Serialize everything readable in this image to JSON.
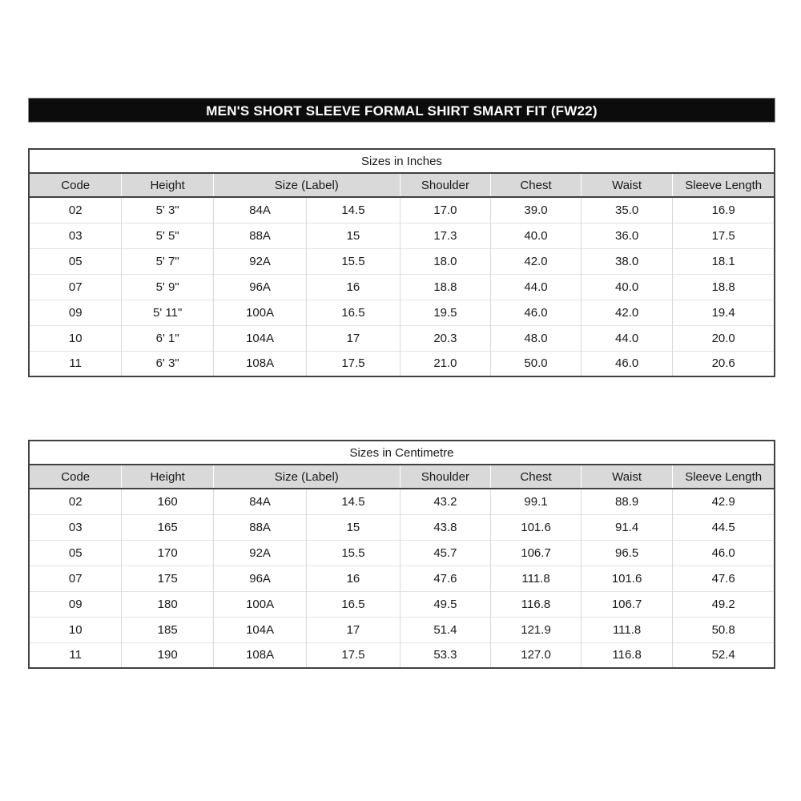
{
  "banner": {
    "title": "MEN'S SHORT SLEEVE FORMAL SHIRT SMART FIT (FW22)",
    "bg_color": "#0c0c0c",
    "text_color": "#ffffff"
  },
  "columns": {
    "code": "Code",
    "height": "Height",
    "size_label": "Size (Label)",
    "shoulder": "Shoulder",
    "chest": "Chest",
    "waist": "Waist",
    "sleeve_length": "Sleeve Length"
  },
  "header_bg_color": "#d9d9d9",
  "tables": {
    "inches": {
      "title": "Sizes in Inches",
      "rows": [
        [
          "02",
          "5' 3\"",
          "84A",
          "14.5",
          "17.0",
          "39.0",
          "35.0",
          "16.9"
        ],
        [
          "03",
          "5' 5\"",
          "88A",
          "15",
          "17.3",
          "40.0",
          "36.0",
          "17.5"
        ],
        [
          "05",
          "5' 7\"",
          "92A",
          "15.5",
          "18.0",
          "42.0",
          "38.0",
          "18.1"
        ],
        [
          "07",
          "5' 9\"",
          "96A",
          "16",
          "18.8",
          "44.0",
          "40.0",
          "18.8"
        ],
        [
          "09",
          "5' 11\"",
          "100A",
          "16.5",
          "19.5",
          "46.0",
          "42.0",
          "19.4"
        ],
        [
          "10",
          "6' 1\"",
          "104A",
          "17",
          "20.3",
          "48.0",
          "44.0",
          "20.0"
        ],
        [
          "11",
          "6' 3\"",
          "108A",
          "17.5",
          "21.0",
          "50.0",
          "46.0",
          "20.6"
        ]
      ]
    },
    "centimetre": {
      "title": "Sizes in Centimetre",
      "rows": [
        [
          "02",
          "160",
          "84A",
          "14.5",
          "43.2",
          "99.1",
          "88.9",
          "42.9"
        ],
        [
          "03",
          "165",
          "88A",
          "15",
          "43.8",
          "101.6",
          "91.4",
          "44.5"
        ],
        [
          "05",
          "170",
          "92A",
          "15.5",
          "45.7",
          "106.7",
          "96.5",
          "46.0"
        ],
        [
          "07",
          "175",
          "96A",
          "16",
          "47.6",
          "111.8",
          "101.6",
          "47.6"
        ],
        [
          "09",
          "180",
          "100A",
          "16.5",
          "49.5",
          "116.8",
          "106.7",
          "49.2"
        ],
        [
          "10",
          "185",
          "104A",
          "17",
          "51.4",
          "121.9",
          "111.8",
          "50.8"
        ],
        [
          "11",
          "190",
          "108A",
          "17.5",
          "53.3",
          "127.0",
          "116.8",
          "52.4"
        ]
      ]
    }
  }
}
